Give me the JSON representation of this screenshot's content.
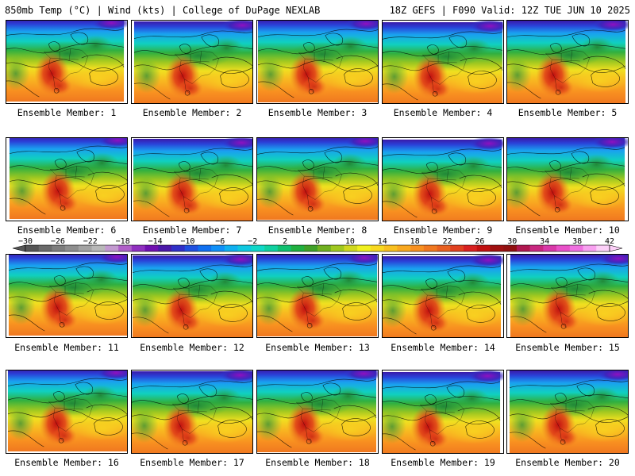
{
  "header": {
    "left": "850mb Temp (°C) | Wind (kts) | College of DuPage NEXLAB",
    "right": "18Z GEFS | F090 Valid: 12Z TUE JUN 10 2025"
  },
  "panels": [
    {
      "label": "Ensemble Member: 1"
    },
    {
      "label": "Ensemble Member: 2"
    },
    {
      "label": "Ensemble Member: 3"
    },
    {
      "label": "Ensemble Member: 4"
    },
    {
      "label": "Ensemble Member: 5"
    },
    {
      "label": "Ensemble Member: 6"
    },
    {
      "label": "Ensemble Member: 7"
    },
    {
      "label": "Ensemble Member: 8"
    },
    {
      "label": "Ensemble Member: 9"
    },
    {
      "label": "Ensemble Member: 10"
    },
    {
      "label": "Ensemble Member: 11"
    },
    {
      "label": "Ensemble Member: 12"
    },
    {
      "label": "Ensemble Member: 13"
    },
    {
      "label": "Ensemble Member: 14"
    },
    {
      "label": "Ensemble Member: 15"
    },
    {
      "label": "Ensemble Member: 16"
    },
    {
      "label": "Ensemble Member: 17"
    },
    {
      "label": "Ensemble Member: 18"
    },
    {
      "label": "Ensemble Member: 19"
    },
    {
      "label": "Ensemble Member: 20"
    }
  ],
  "colorbar": {
    "labels": [
      "−30",
      "−26",
      "−22",
      "−18",
      "−14",
      "−10",
      "−6",
      "−2",
      "2",
      "6",
      "10",
      "14",
      "18",
      "22",
      "26",
      "30",
      "34",
      "38",
      "42"
    ],
    "colors": [
      "#555555",
      "#6a6a6a",
      "#7d7d7d",
      "#8e8e8e",
      "#a3a3a3",
      "#b8b8b8",
      "#c39ad0",
      "#b060c8",
      "#9030c0",
      "#7010b0",
      "#4a18a8",
      "#3030c8",
      "#2050e0",
      "#1070f0",
      "#1090f8",
      "#10b0f0",
      "#10c8e0",
      "#10d8c8",
      "#10d0a0",
      "#10c070",
      "#20b040",
      "#40a028",
      "#70b020",
      "#a0c820",
      "#d0d820",
      "#f0f020",
      "#f8d820",
      "#f8c020",
      "#f8a820",
      "#f89020",
      "#f07820",
      "#e86020",
      "#e04020",
      "#d82020",
      "#c01010",
      "#a01010",
      "#901010",
      "#b01850",
      "#c82880",
      "#d838a8",
      "#e850c8",
      "#f070e0",
      "#f8a0f0",
      "#fcd0f8"
    ]
  }
}
